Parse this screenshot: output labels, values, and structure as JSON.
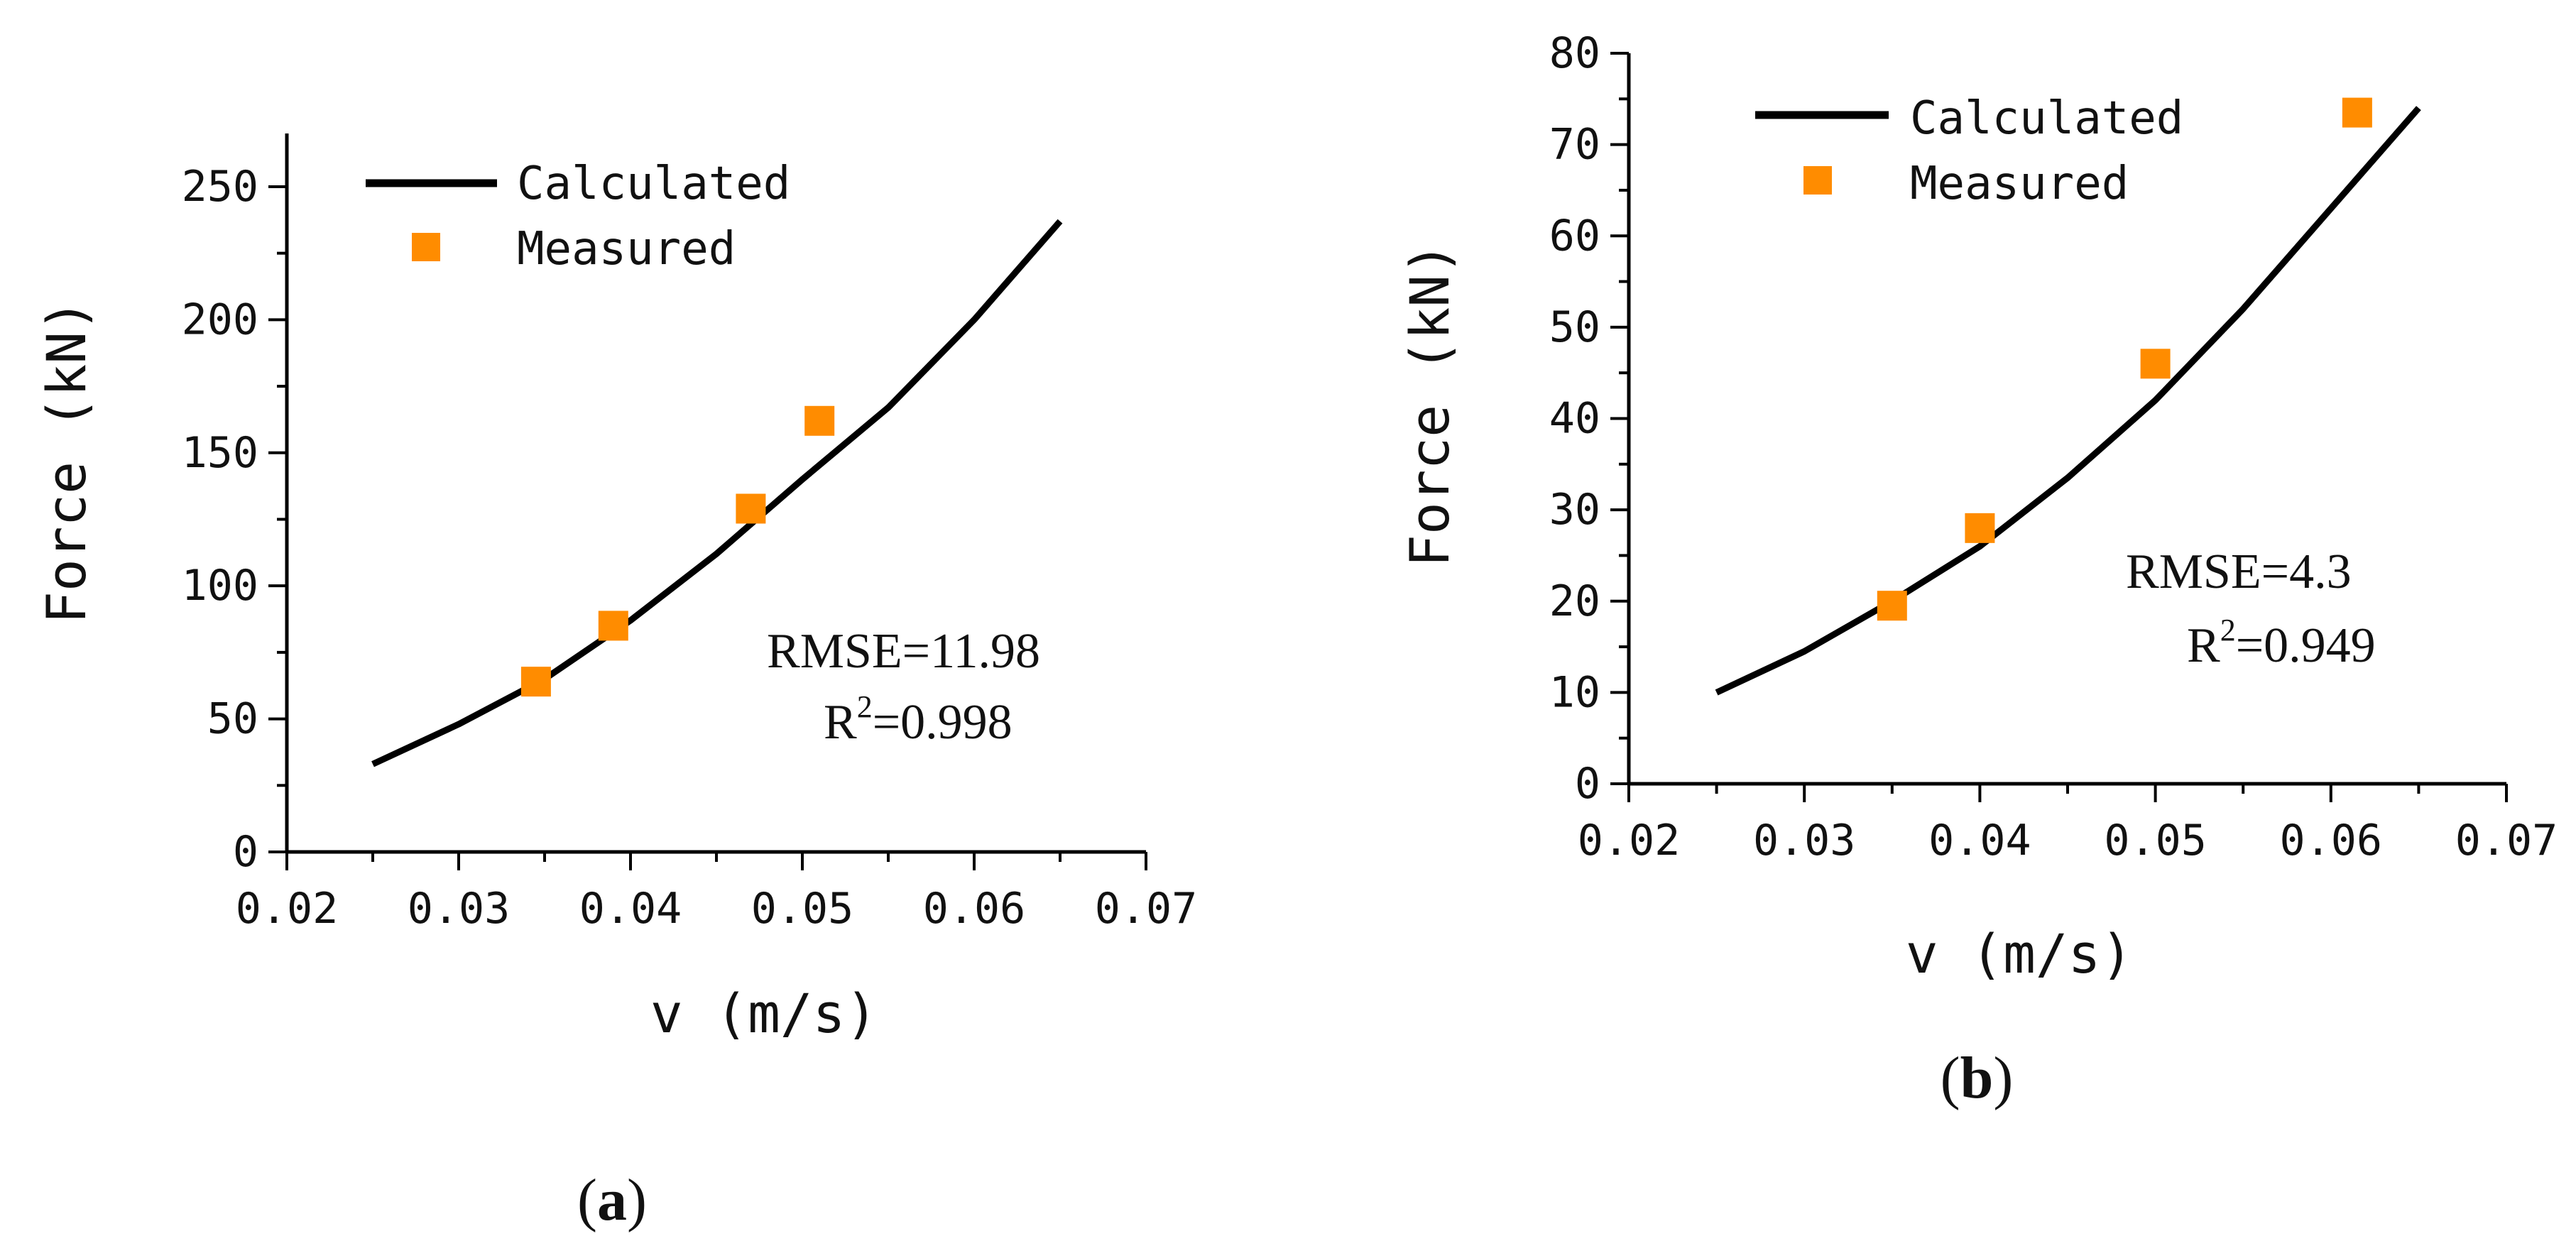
{
  "colors": {
    "calculated": "#000000",
    "measured": "#ff8c00",
    "axis": "#000000"
  },
  "chart_data": [
    {
      "type": "line",
      "panel_label": "(a)",
      "panel_label_parts": {
        "open": "(",
        "letter": "a",
        "close": ")"
      },
      "xlabel": "v (m/s)",
      "ylabel": "Force (kN)",
      "xlim": [
        0.02,
        0.07
      ],
      "ylim": [
        0,
        270
      ],
      "x_ticks": [
        0.02,
        0.03,
        0.04,
        0.05,
        0.06,
        0.07
      ],
      "x_tick_labels": [
        "0.02",
        "0.03",
        "0.04",
        "0.05",
        "0.06",
        "0.07"
      ],
      "y_ticks": [
        0,
        50,
        100,
        150,
        200,
        250
      ],
      "y_tick_labels": [
        "0",
        "50",
        "100",
        "150",
        "200",
        "250"
      ],
      "legend": {
        "position": "top-left",
        "entries": [
          "Calculated",
          "Measured"
        ]
      },
      "annotations": {
        "rmse": "RMSE=11.98",
        "r2_prefix": "R",
        "r2_sup": "2",
        "r2_value": "=0.998"
      },
      "series": [
        {
          "name": "Calculated",
          "style": "line",
          "x": [
            0.025,
            0.03,
            0.035,
            0.04,
            0.045,
            0.05,
            0.055,
            0.06,
            0.065
          ],
          "y": [
            33,
            48,
            65,
            87,
            112,
            140,
            167,
            200,
            237
          ]
        },
        {
          "name": "Measured",
          "style": "marker",
          "x": [
            0.0345,
            0.039,
            0.047,
            0.051
          ],
          "y": [
            64,
            85,
            129,
            162
          ]
        }
      ]
    },
    {
      "type": "line",
      "panel_label": "(b)",
      "panel_label_parts": {
        "open": "(",
        "letter": "b",
        "close": ")"
      },
      "xlabel": "v (m/s)",
      "ylabel": "Force (kN)",
      "xlim": [
        0.02,
        0.07
      ],
      "ylim": [
        0,
        80
      ],
      "x_ticks": [
        0.02,
        0.03,
        0.04,
        0.05,
        0.06,
        0.07
      ],
      "x_tick_labels": [
        "0.02",
        "0.03",
        "0.04",
        "0.05",
        "0.06",
        "0.07"
      ],
      "y_ticks": [
        0,
        10,
        20,
        30,
        40,
        50,
        60,
        70,
        80
      ],
      "y_tick_labels": [
        "0",
        "10",
        "20",
        "30",
        "40",
        "50",
        "60",
        "70",
        "80"
      ],
      "legend": {
        "position": "top-left",
        "entries": [
          "Calculated",
          "Measured"
        ]
      },
      "annotations": {
        "rmse": "RMSE=4.3",
        "r2_prefix": "R",
        "r2_sup": "2",
        "r2_value": "=0.949"
      },
      "series": [
        {
          "name": "Calculated",
          "style": "line",
          "x": [
            0.025,
            0.03,
            0.035,
            0.04,
            0.045,
            0.05,
            0.055,
            0.06,
            0.065
          ],
          "y": [
            10,
            14.5,
            20,
            26,
            33.5,
            42,
            52,
            63,
            74
          ]
        },
        {
          "name": "Measured",
          "style": "marker",
          "x": [
            0.035,
            0.04,
            0.05,
            0.0615
          ],
          "y": [
            19.5,
            28,
            46,
            73.5
          ]
        }
      ]
    }
  ]
}
